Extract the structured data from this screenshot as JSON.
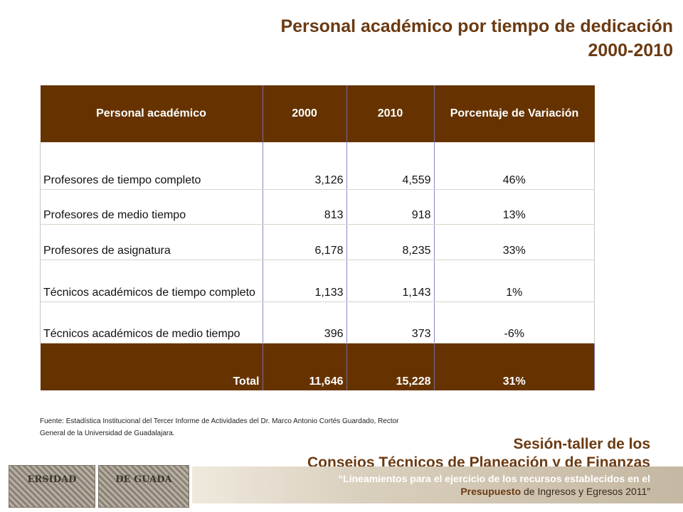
{
  "title": {
    "line1": "Personal académico por tiempo de dedicación",
    "line2": "2000-2010"
  },
  "table": {
    "headers": [
      "Personal académico",
      "2000",
      "2010",
      "Porcentaje de Variación"
    ],
    "rows": [
      {
        "label": "Profesores de tiempo completo",
        "y2000": "3,126",
        "y2010": "4,559",
        "pct": "46%"
      },
      {
        "label": "Profesores de medio tiempo",
        "y2000": "813",
        "y2010": "918",
        "pct": "13%"
      },
      {
        "label": "Profesores de asignatura",
        "y2000": "6,178",
        "y2010": "8,235",
        "pct": "33%"
      },
      {
        "label": "Técnicos académicos de tiempo completo",
        "y2000": "1,133",
        "y2010": "1,143",
        "pct": "1%"
      },
      {
        "label": "Técnicos académicos de medio tiempo",
        "y2000": "396",
        "y2010": "373",
        "pct": "-6%"
      }
    ],
    "total": {
      "label": "Total",
      "y2000": "11,646",
      "y2010": "15,228",
      "pct": "31%"
    }
  },
  "source": "Fuente: Estadística Institucional del Tercer Informe de Actividades del Dr. Marco Antonio Cortés Guardado, Rector General de la Universidad de Guadalajara.",
  "footer": {
    "session_line1": "Sesión-taller de los",
    "session_line2": "Consejos Técnicos de Planeación y de Finanzas",
    "band_line1": "“Lineamientos para el ejercicio de los recursos establecidos en el",
    "band_bold": "Presupuesto",
    "band_reg": " de Ingresos y Egresos 2011",
    "band_close": "”"
  },
  "seal": {
    "left_text": "ERSIDAD",
    "right_text": "DE GUADA"
  },
  "colors": {
    "accent_brown": "#663300",
    "title_brown": "#6b3a12"
  }
}
